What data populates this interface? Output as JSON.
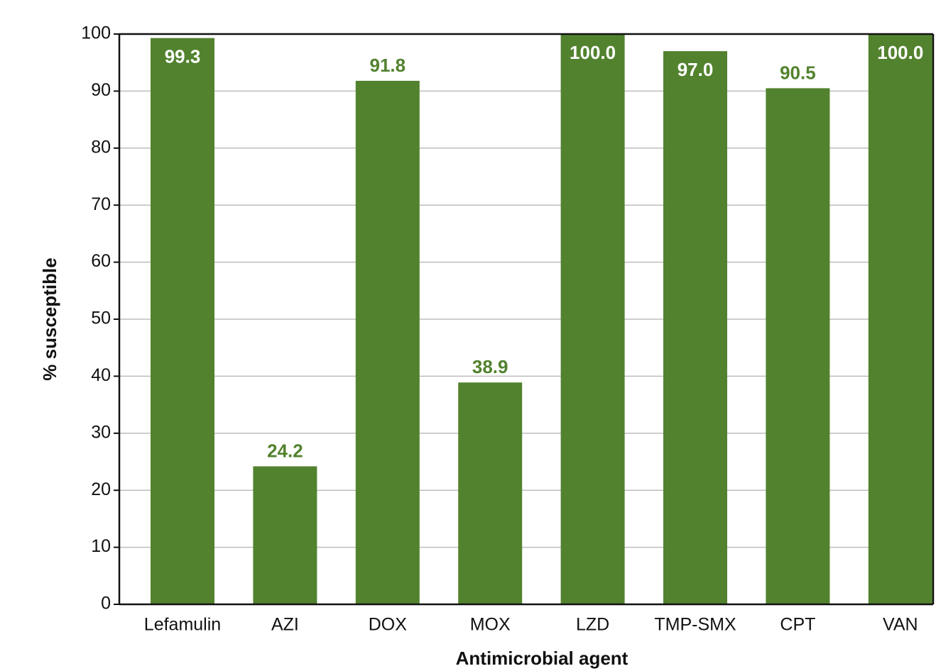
{
  "chart_data": {
    "type": "bar",
    "x_label": "Antimicrobial agent",
    "y_label": "% susceptible",
    "categories": [
      "Lefamulin",
      "AZI",
      "DOX",
      "MOX",
      "LZD",
      "TMP-SMX",
      "CPT",
      "VAN"
    ],
    "values": [
      99.3,
      24.2,
      91.8,
      38.9,
      100,
      97,
      90.5,
      100
    ],
    "value_labels": [
      "99.3",
      "24.2",
      "91.8",
      "38.9",
      "100.0",
      "97.0",
      "90.5",
      "100.0"
    ],
    "color": "#52822e",
    "ylim": [
      0,
      100
    ],
    "yticks": [
      0,
      10,
      20,
      30,
      40,
      50,
      60,
      70,
      80,
      90,
      100
    ],
    "grid": true
  }
}
